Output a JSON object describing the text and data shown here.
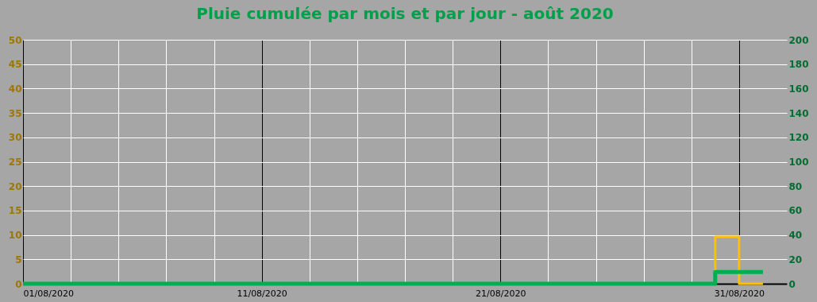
{
  "chart_data": {
    "type": "step",
    "title": "Pluie cumulée par mois et par jour - août 2020",
    "x": [
      "2020-08-01",
      "2020-08-02",
      "2020-08-03",
      "2020-08-04",
      "2020-08-05",
      "2020-08-06",
      "2020-08-07",
      "2020-08-08",
      "2020-08-09",
      "2020-08-10",
      "2020-08-11",
      "2020-08-12",
      "2020-08-13",
      "2020-08-14",
      "2020-08-15",
      "2020-08-16",
      "2020-08-17",
      "2020-08-18",
      "2020-08-19",
      "2020-08-20",
      "2020-08-21",
      "2020-08-22",
      "2020-08-23",
      "2020-08-24",
      "2020-08-25",
      "2020-08-26",
      "2020-08-27",
      "2020-08-28",
      "2020-08-29",
      "2020-08-30",
      "2020-08-31",
      "2020-09-01"
    ],
    "series": [
      {
        "type": "step",
        "color": "#ffc000",
        "values": [
          null,
          null,
          null,
          null,
          null,
          null,
          null,
          null,
          null,
          null,
          null,
          null,
          null,
          null,
          null,
          null,
          null,
          null,
          null,
          null,
          null,
          null,
          null,
          null,
          null,
          null,
          null,
          null,
          0,
          9.6,
          0,
          0
        ]
      },
      {
        "type": "step",
        "color": "#00b050",
        "axis": "y2",
        "values": [
          0,
          0,
          0,
          0,
          0,
          0,
          0,
          0,
          0,
          0,
          0,
          0,
          0,
          0,
          0,
          0,
          0,
          0,
          0,
          0,
          0,
          0,
          0,
          0,
          0,
          0,
          0,
          0,
          0,
          9.6,
          9.6,
          9.6
        ]
      }
    ],
    "xlim": [
      "2020-08-01",
      "2020-09-02"
    ],
    "xticks": [
      {
        "value": "2020-08-01",
        "label": "01/08/2020"
      },
      {
        "value": "2020-08-03",
        "label": null
      },
      {
        "value": "2020-08-05",
        "label": null
      },
      {
        "value": "2020-08-07",
        "label": null
      },
      {
        "value": "2020-08-09",
        "label": null
      },
      {
        "value": "2020-08-11",
        "label": "11/08/2020"
      },
      {
        "value": "2020-08-13",
        "label": null
      },
      {
        "value": "2020-08-15",
        "label": null
      },
      {
        "value": "2020-08-17",
        "label": null
      },
      {
        "value": "2020-08-19",
        "label": null
      },
      {
        "value": "2020-08-21",
        "label": "21/08/2020"
      },
      {
        "value": "2020-08-23",
        "label": null
      },
      {
        "value": "2020-08-25",
        "label": null
      },
      {
        "value": "2020-08-27",
        "label": null
      },
      {
        "value": "2020-08-29",
        "label": null
      },
      {
        "value": "2020-08-31",
        "label": "31/08/2020"
      }
    ],
    "ylim": [
      0,
      50
    ],
    "yticks": [
      0,
      5,
      10,
      15,
      20,
      25,
      30,
      35,
      40,
      45,
      50
    ],
    "y2lim": [
      0,
      200
    ],
    "y2ticks": [
      0,
      20,
      40,
      60,
      80,
      100,
      120,
      140,
      160,
      180,
      200
    ],
    "grid": true,
    "legend": false,
    "line_style": "solid"
  }
}
